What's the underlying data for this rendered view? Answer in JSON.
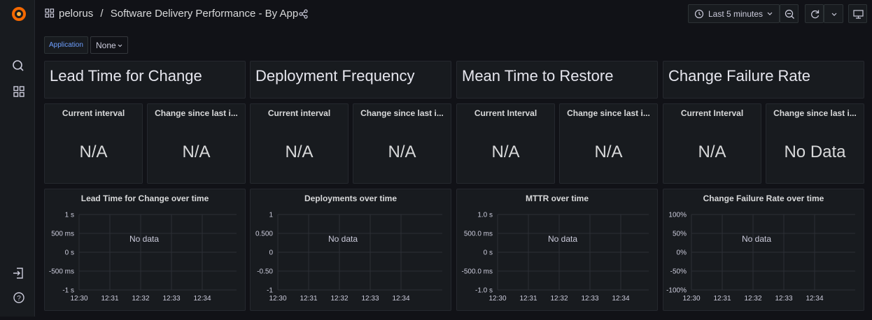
{
  "nav": {
    "home": "pelorus",
    "separator": "/",
    "title": "Software Delivery Performance - By App"
  },
  "time_picker": {
    "range": "Last 5 minutes"
  },
  "variables": [
    {
      "label": "Application",
      "value": "None"
    }
  ],
  "groups": [
    {
      "title": "Lead Time for Change",
      "stats": [
        {
          "title": "Current interval",
          "value": "N/A"
        },
        {
          "title": "Change since last i...",
          "value": "N/A"
        }
      ],
      "graph": {
        "title": "Lead Time for Change over time",
        "yticks": [
          "1 s",
          "500 ms",
          "0 s",
          "-500 ms",
          "-1 s"
        ],
        "xticks": [
          "12:30",
          "12:31",
          "12:32",
          "12:33",
          "12:34"
        ],
        "message": "No data"
      }
    },
    {
      "title": "Deployment Frequency",
      "stats": [
        {
          "title": "Current interval",
          "value": "N/A"
        },
        {
          "title": "Change since last i...",
          "value": "N/A"
        }
      ],
      "graph": {
        "title": "Deployments over time",
        "yticks": [
          "1",
          "0.500",
          "0",
          "-0.50",
          "-1"
        ],
        "xticks": [
          "12:30",
          "12:31",
          "12:32",
          "12:33",
          "12:34"
        ],
        "message": "No data"
      }
    },
    {
      "title": "Mean Time to Restore",
      "stats": [
        {
          "title": "Current Interval",
          "value": "N/A"
        },
        {
          "title": "Change since last i...",
          "value": "N/A"
        }
      ],
      "graph": {
        "title": "MTTR over time",
        "yticks": [
          "1.0 s",
          "500.0 ms",
          "0 s",
          "-500.0 ms",
          "-1.0 s"
        ],
        "xticks": [
          "12:30",
          "12:31",
          "12:32",
          "12:33",
          "12:34"
        ],
        "message": "No data"
      }
    },
    {
      "title": "Change Failure Rate",
      "stats": [
        {
          "title": "Current Interval",
          "value": "N/A"
        },
        {
          "title": "Change since last i...",
          "value": "No Data"
        }
      ],
      "graph": {
        "title": "Change Failure Rate over time",
        "yticks": [
          "100%",
          "50%",
          "0%",
          "-50%",
          "-100%"
        ],
        "xticks": [
          "12:30",
          "12:31",
          "12:32",
          "12:33",
          "12:34"
        ],
        "message": "No data"
      }
    }
  ]
}
